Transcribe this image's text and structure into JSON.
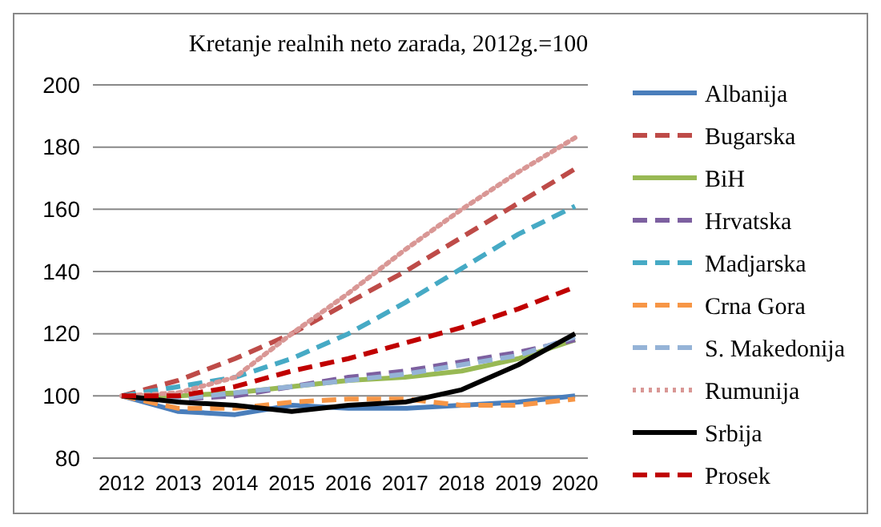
{
  "chart_data": {
    "type": "line",
    "title": "Kretanje realnih  neto zarada, 2012g.=100",
    "categories": [
      "2012",
      "2013",
      "2014",
      "2015",
      "2016",
      "2017",
      "2018",
      "2019",
      "2020"
    ],
    "ylim": [
      80,
      200
    ],
    "yticks": [
      80,
      100,
      120,
      140,
      160,
      180,
      200
    ],
    "grid": "y",
    "legend": "right",
    "marker": "none",
    "series": [
      {
        "name": "Albanija",
        "color": "#4a7ebb",
        "line_style": "solid",
        "values": [
          100,
          95,
          94,
          97,
          96,
          96,
          97,
          98,
          100
        ]
      },
      {
        "name": "Bugarska",
        "color": "#be4b48",
        "line_style": "dashed",
        "values": [
          100,
          105,
          112,
          120,
          130,
          140,
          151,
          162,
          173
        ]
      },
      {
        "name": "BiH",
        "color": "#98b954",
        "line_style": "solid",
        "values": [
          100,
          100,
          101,
          103,
          105,
          106,
          108,
          112,
          118
        ]
      },
      {
        "name": "Hrvatska",
        "color": "#7d60a0",
        "line_style": "dashed",
        "values": [
          100,
          99,
          100,
          103,
          106,
          108,
          111,
          114,
          118
        ]
      },
      {
        "name": "Madjarska",
        "color": "#46aac5",
        "line_style": "dashed",
        "values": [
          100,
          103,
          106,
          112,
          120,
          130,
          141,
          152,
          161
        ]
      },
      {
        "name": "Crna Gora",
        "color": "#f79646",
        "line_style": "dashed",
        "values": [
          100,
          96,
          96,
          98,
          99,
          99,
          97,
          97,
          99
        ]
      },
      {
        "name": "S. Makedonija",
        "color": "#95b3d7",
        "line_style": "dashed",
        "values": [
          100,
          99,
          101,
          103,
          105,
          107,
          110,
          113,
          119
        ]
      },
      {
        "name": "Rumunija",
        "color": "#d99795",
        "line_style": "dotted",
        "values": [
          100,
          101,
          106,
          120,
          133,
          147,
          160,
          172,
          183
        ]
      },
      {
        "name": "Srbija",
        "color": "#000000",
        "line_style": "solid",
        "values": [
          100,
          98,
          97,
          95,
          97,
          98,
          102,
          110,
          120
        ]
      },
      {
        "name": "Prosek",
        "color": "#c00000",
        "line_style": "dashed",
        "values": [
          100,
          100,
          103,
          108,
          112,
          117,
          122,
          128,
          135
        ]
      }
    ]
  }
}
